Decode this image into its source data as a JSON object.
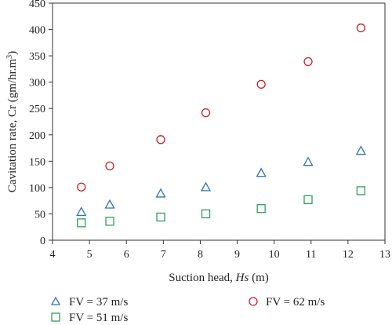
{
  "chart_data": {
    "type": "scatter",
    "xlabel": {
      "prefix": "Suction head, ",
      "italic": "Hs",
      "suffix": " (m)"
    },
    "ylabel": {
      "text": "Cavitation rate, Cr (gm/hr.m",
      "sup": "3",
      "close": ")"
    },
    "xlim": [
      4,
      13
    ],
    "ylim": [
      0,
      450
    ],
    "xticks": [
      4,
      5,
      6,
      7,
      8,
      9,
      10,
      11,
      12,
      13
    ],
    "yticks": [
      0,
      50,
      100,
      150,
      200,
      250,
      300,
      350,
      400,
      450
    ],
    "grid": false,
    "legend_position": "bottom",
    "series": [
      {
        "name": "FV = 37 m/s",
        "marker": "triangle",
        "color": "#2e75b6",
        "x": [
          4.78,
          5.55,
          6.93,
          8.15,
          9.65,
          10.92,
          12.35
        ],
        "y": [
          53,
          67,
          88,
          100,
          127,
          148,
          169
        ]
      },
      {
        "name": "FV = 62 m/s",
        "marker": "circle",
        "color": "#c8202a",
        "x": [
          4.78,
          5.55,
          6.93,
          8.15,
          9.65,
          10.92,
          12.35
        ],
        "y": [
          101,
          141,
          191,
          242,
          296,
          339,
          403
        ]
      },
      {
        "name": "FV = 51 m/s",
        "marker": "square",
        "color": "#2ca05a",
        "x": [
          4.78,
          5.55,
          6.93,
          8.15,
          9.65,
          10.92,
          12.35
        ],
        "y": [
          33,
          36,
          44,
          50,
          60,
          77,
          94
        ]
      }
    ]
  }
}
